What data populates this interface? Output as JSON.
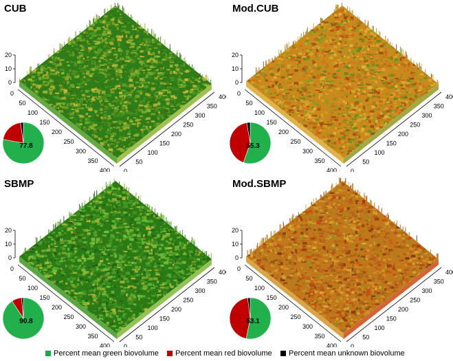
{
  "panels": [
    {
      "title": "CUB",
      "palette": [
        "#2f7d18",
        "#4a9a22",
        "#6aa82a",
        "#8fb532",
        "#c8b83a",
        "#3b6a14",
        "#5c8f1e",
        "#a8b436"
      ],
      "pie": {
        "green": 77.8,
        "red": 20.0,
        "unknown": 2.2,
        "label": "77.8"
      }
    },
    {
      "title": "Mod.CUB",
      "palette": [
        "#c98a1c",
        "#d9a52a",
        "#b5701a",
        "#8f9a24",
        "#6a8a1c",
        "#d86a18",
        "#e0b43a",
        "#a04a10"
      ],
      "pie": {
        "green": 55.3,
        "red": 42.0,
        "unknown": 2.7,
        "label": "55.3"
      }
    },
    {
      "title": "SBMP",
      "palette": [
        "#2a7a16",
        "#3f9622",
        "#5aac2c",
        "#80b838",
        "#b8b83c",
        "#246014",
        "#4c8a1e",
        "#66c23a"
      ],
      "pie": {
        "green": 90.8,
        "red": 7.8,
        "unknown": 1.4,
        "label": "90.8"
      }
    },
    {
      "title": "Mod.SBMP",
      "palette": [
        "#c0781a",
        "#d39428",
        "#a8601a",
        "#c84a14",
        "#9a8a22",
        "#d8aa34",
        "#b06018",
        "#8a3a10"
      ],
      "pie": {
        "green": 53.1,
        "red": 44.9,
        "unknown": 2.0,
        "label": "53.1"
      }
    }
  ],
  "axes": {
    "z_ticks": [
      "20",
      "10",
      "0"
    ],
    "left_ticks": [
      "0",
      "50",
      "100",
      "150",
      "200",
      "250",
      "300",
      "350",
      "400"
    ],
    "right_ticks": [
      "0",
      "50",
      "100",
      "150",
      "200",
      "250",
      "300",
      "350",
      "400"
    ]
  },
  "legend": {
    "items": [
      {
        "label": "Percent mean green biovolume",
        "color": "#1aaa4a"
      },
      {
        "label": "Percent mean red biovolume",
        "color": "#c00000"
      },
      {
        "label": "Percent mean unknown biovolume",
        "color": "#000000"
      }
    ]
  },
  "colors": {
    "pie_green": "#21b04b",
    "pie_red": "#c00000",
    "pie_unknown": "#000000"
  }
}
